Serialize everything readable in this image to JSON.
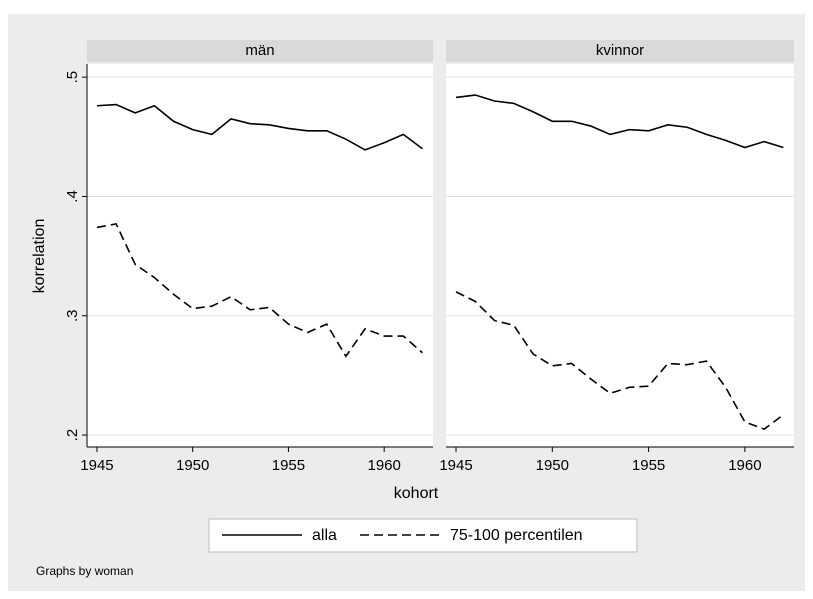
{
  "chart_data": [
    {
      "type": "line",
      "title": "män",
      "x": [
        1945,
        1946,
        1947,
        1948,
        1949,
        1950,
        1951,
        1952,
        1953,
        1954,
        1955,
        1956,
        1957,
        1958,
        1959,
        1960,
        1961,
        1962
      ],
      "series": [
        {
          "name": "alla",
          "color": "#000000",
          "dash": "solid",
          "values": [
            0.476,
            0.477,
            0.47,
            0.476,
            0.463,
            0.456,
            0.452,
            0.465,
            0.461,
            0.46,
            0.457,
            0.455,
            0.455,
            0.448,
            0.439,
            0.445,
            0.452,
            0.44
          ]
        },
        {
          "name": "75-100 percentilen",
          "color": "#000000",
          "dash": "dashed",
          "values": [
            0.374,
            0.377,
            0.343,
            0.332,
            0.318,
            0.306,
            0.308,
            0.316,
            0.305,
            0.307,
            0.293,
            0.286,
            0.293,
            0.266,
            0.289,
            0.283,
            0.283,
            0.269
          ]
        }
      ],
      "xlim": [
        1944.48,
        1962.55
      ],
      "ylim": [
        0.19,
        0.511
      ],
      "xticks": [
        1945,
        1950,
        1955,
        1960
      ],
      "yticks": [
        {
          "value": 0.2,
          "label": ".2"
        },
        {
          "value": 0.3,
          "label": ".3"
        },
        {
          "value": 0.4,
          "label": ".4"
        },
        {
          "value": 0.5,
          "label": ".5"
        }
      ],
      "grid": true
    },
    {
      "type": "line",
      "title": "kvinnor",
      "x": [
        1945,
        1946,
        1947,
        1948,
        1949,
        1950,
        1951,
        1952,
        1953,
        1954,
        1955,
        1956,
        1957,
        1958,
        1959,
        1960,
        1961,
        1962
      ],
      "series": [
        {
          "name": "alla",
          "color": "#000000",
          "dash": "solid",
          "values": [
            0.483,
            0.485,
            0.48,
            0.478,
            0.471,
            0.463,
            0.463,
            0.459,
            0.452,
            0.456,
            0.455,
            0.46,
            0.458,
            0.452,
            0.447,
            0.441,
            0.446,
            0.441
          ]
        },
        {
          "name": "75-100 percentilen",
          "color": "#000000",
          "dash": "dashed",
          "values": [
            0.32,
            0.312,
            0.296,
            0.292,
            0.268,
            0.258,
            0.26,
            0.247,
            0.235,
            0.24,
            0.241,
            0.26,
            0.259,
            0.262,
            0.24,
            0.211,
            0.205,
            0.217
          ]
        }
      ],
      "xlim": [
        1944.48,
        1962.55
      ],
      "ylim": [
        0.19,
        0.511
      ],
      "xticks": [
        1945,
        1950,
        1955,
        1960
      ],
      "yticks": [
        0.2,
        0.3,
        0.4,
        0.5
      ],
      "grid": true
    }
  ],
  "axes": {
    "y_label": "korrelation",
    "x_label": "kohort"
  },
  "note": "Graphs by woman"
}
